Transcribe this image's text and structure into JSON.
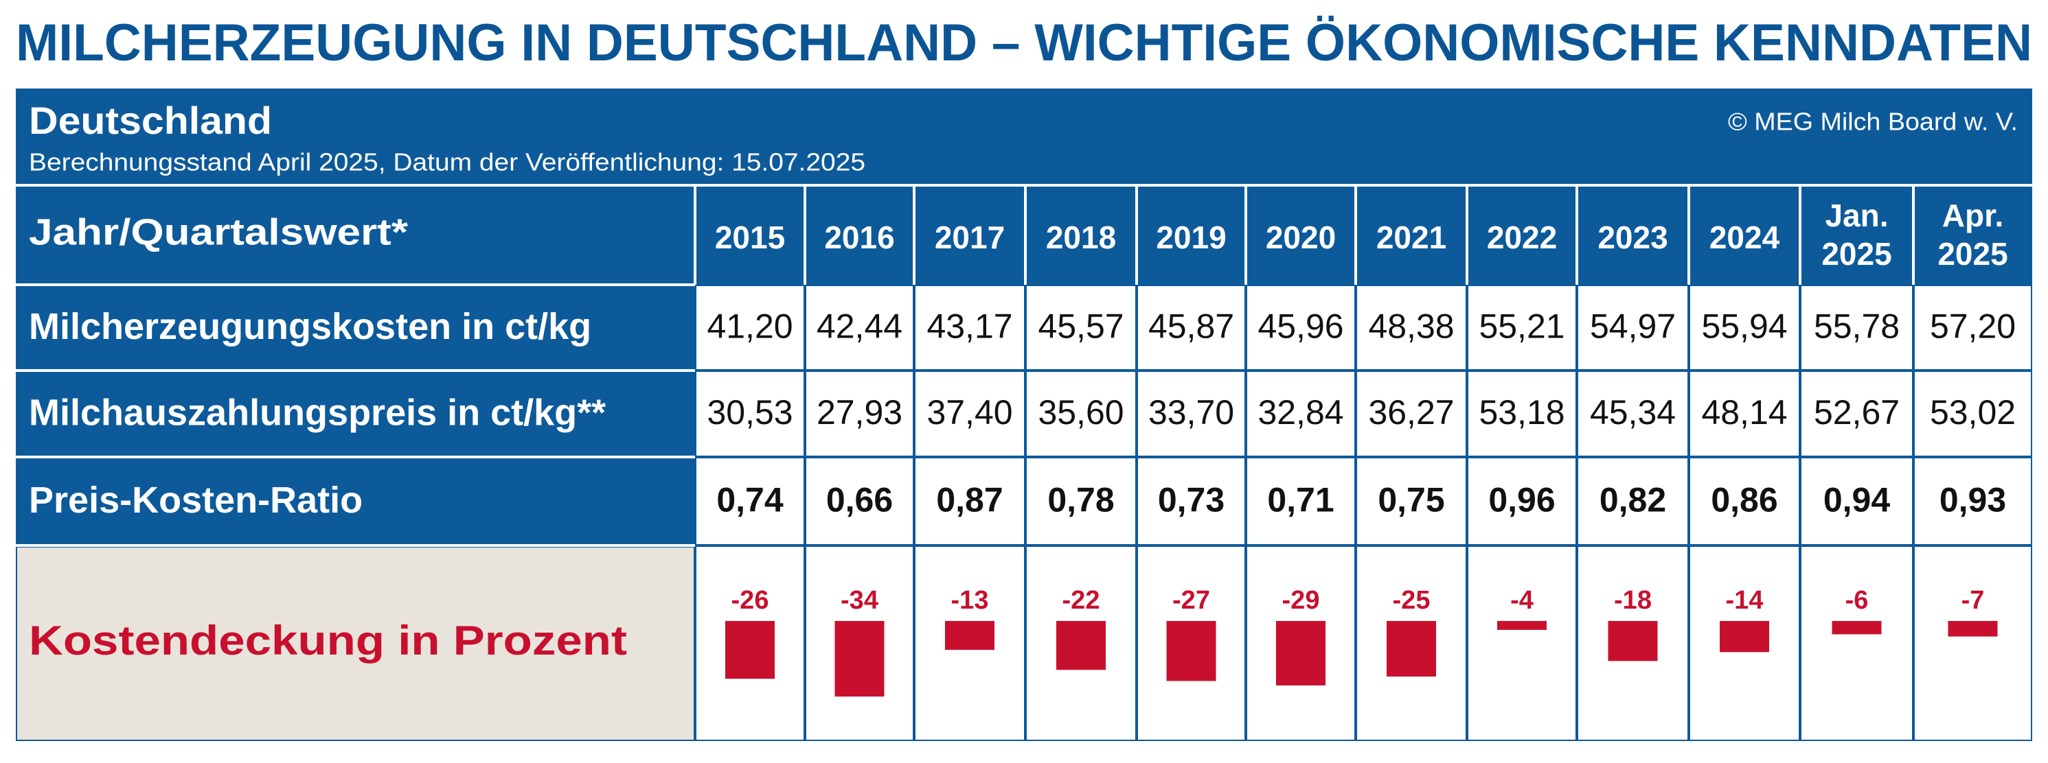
{
  "header": {
    "title": "MILCHERZEUGUNG IN DEUTSCHLAND – WICHTIGE ÖKONOMISCHE KENNDATEN",
    "region": "Deutschland",
    "subtitle": "Berechnungsstand April 2025, Datum der Veröffentlichung: 15.07.2025",
    "copyright": "© MEG Milch Board w. V."
  },
  "table": {
    "corner": "Jahr/Quartalswert*",
    "columns": [
      [
        "2015"
      ],
      [
        "2016"
      ],
      [
        "2017"
      ],
      [
        "2018"
      ],
      [
        "2019"
      ],
      [
        "2020"
      ],
      [
        "2021"
      ],
      [
        "2022"
      ],
      [
        "2023"
      ],
      [
        "2024"
      ],
      [
        "Jan.",
        "2025"
      ],
      [
        "Apr.",
        "2025"
      ]
    ],
    "rows": [
      {
        "label": "Milcherzeugungskosten in ct/kg",
        "values": [
          "41,20",
          "42,44",
          "43,17",
          "45,57",
          "45,87",
          "45,96",
          "48,38",
          "55,21",
          "54,97",
          "55,94",
          "55,78",
          "57,20"
        ]
      },
      {
        "label": "Milchauszahlungspreis in ct/kg**",
        "values": [
          "30,53",
          "27,93",
          "37,40",
          "35,60",
          "33,70",
          "32,84",
          "36,27",
          "53,18",
          "45,34",
          "48,14",
          "52,67",
          "53,02"
        ]
      },
      {
        "label": "Preis-Kosten-Ratio",
        "values": [
          "0,74",
          "0,66",
          "0,87",
          "0,78",
          "0,73",
          "0,71",
          "0,75",
          "0,96",
          "0,82",
          "0,86",
          "0,94",
          "0,93"
        ]
      }
    ],
    "coverage": {
      "label": "Kostendeckung in Prozent",
      "values": [
        -26,
        -34,
        -13,
        -22,
        -27,
        -29,
        -25,
        -4,
        -18,
        -14,
        -6,
        -7
      ],
      "color": "#c8102e"
    }
  }
}
